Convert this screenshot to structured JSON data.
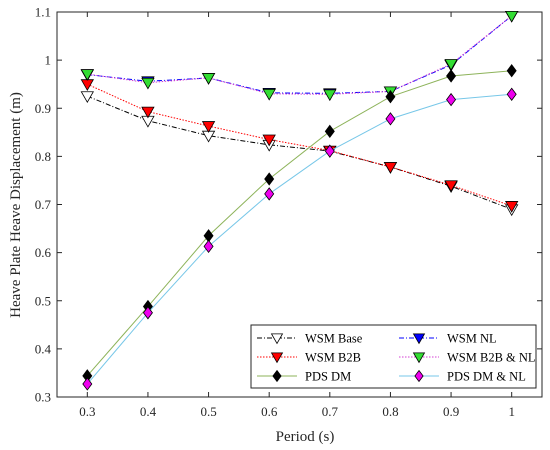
{
  "chart_data": {
    "type": "line",
    "title": "",
    "xlabel": "Period (s)",
    "ylabel": "Heave Plate Heave Displacement (m)",
    "xlim": [
      0.25,
      1.05
    ],
    "ylim": [
      0.3,
      1.1
    ],
    "x": [
      0.3,
      0.4,
      0.5,
      0.6,
      0.7,
      0.8,
      0.9,
      1.0
    ],
    "x_ticks": [
      0.3,
      0.4,
      0.5,
      0.6,
      0.7,
      0.8,
      0.9,
      1
    ],
    "y_ticks": [
      0.3,
      0.4,
      0.5,
      0.6,
      0.7,
      0.8,
      0.9,
      1,
      1.1
    ],
    "grid": false,
    "legend_position": "bottom-right",
    "legend_columns": 2,
    "series": [
      {
        "name": "WSM Base",
        "values": [
          0.925,
          0.874,
          0.843,
          0.824,
          0.811,
          0.778,
          0.738,
          0.69
        ],
        "color": "#000000",
        "marker": "triangle-down",
        "marker_fill": "#ffffff",
        "line_style": "dash-dot"
      },
      {
        "name": "WSM NL",
        "values": [
          0.97,
          0.956,
          0.963,
          0.932,
          0.931,
          0.935,
          0.99,
          1.092
        ],
        "color": "#0000ff",
        "marker": "triangle-down",
        "marker_fill": "#0000ff",
        "line_style": "dash-dot"
      },
      {
        "name": "WSM B2B",
        "values": [
          0.95,
          0.893,
          0.863,
          0.835,
          0.812,
          0.778,
          0.74,
          0.697
        ],
        "color": "#ff0000",
        "marker": "triangle-down",
        "marker_fill": "#ff0000",
        "line_style": "dotted"
      },
      {
        "name": "WSM B2B & NL",
        "values": [
          0.971,
          0.953,
          0.963,
          0.93,
          0.929,
          0.935,
          0.992,
          1.092
        ],
        "color": "#d43fd4",
        "marker": "triangle-down",
        "marker_fill": "#33dd33",
        "line_style": "dotted"
      },
      {
        "name": "PDS DM",
        "values": [
          0.344,
          0.488,
          0.635,
          0.753,
          0.852,
          0.924,
          0.967,
          0.978
        ],
        "color": "#8db35a",
        "marker": "diamond",
        "marker_fill": "#000000",
        "line_style": "solid"
      },
      {
        "name": "PDS DM & NL",
        "values": [
          0.327,
          0.475,
          0.613,
          0.722,
          0.811,
          0.878,
          0.918,
          0.929
        ],
        "color": "#77c7e8",
        "marker": "diamond",
        "marker_fill": "#ee00ee",
        "line_style": "solid"
      }
    ]
  }
}
